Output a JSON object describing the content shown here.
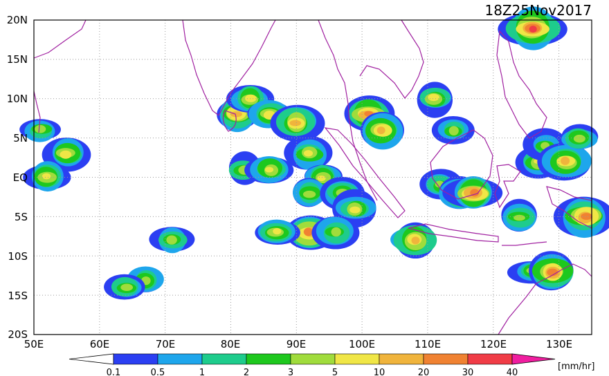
{
  "title": "18Z25Nov2017",
  "lat_labels": [
    "20N",
    "15N",
    "10N",
    "5N",
    "EQ",
    "5S",
    "10S",
    "15S",
    "20S"
  ],
  "lon_labels": [
    "50E",
    "60E",
    "70E",
    "80E",
    "90E",
    "100E",
    "110E",
    "120E",
    "130E"
  ],
  "colorbar": {
    "unit": "[mm/hr]",
    "tick_labels": [
      "0.1",
      "0.5",
      "1",
      "2",
      "3",
      "5",
      "10",
      "20",
      "30",
      "40"
    ],
    "colors": [
      "#ffffff",
      "#2b3ff2",
      "#1ea6ec",
      "#1ecc8c",
      "#1ec81e",
      "#a0dc3c",
      "#f0e646",
      "#f0b43c",
      "#f08232",
      "#f03c46",
      "#f01ea0"
    ]
  },
  "chart_data": {
    "type": "heatmap",
    "title": "18Z25Nov2017",
    "xlim": [
      50,
      135
    ],
    "ylim": [
      -20,
      20
    ],
    "unit": "[mm/hr]",
    "levels": [
      0.1,
      0.5,
      1,
      2,
      3,
      5,
      10,
      20,
      30,
      40
    ],
    "rain_areas": [
      {
        "lon": 81,
        "lat": 8,
        "level": 10
      },
      {
        "lon": 83,
        "lat": 10,
        "level": 5
      },
      {
        "lon": 86,
        "lat": 8,
        "level": 5
      },
      {
        "lon": 90,
        "lat": 7,
        "level": 10
      },
      {
        "lon": 92,
        "lat": 3,
        "level": 5
      },
      {
        "lon": 94,
        "lat": 0,
        "level": 5
      },
      {
        "lon": 92,
        "lat": -2,
        "level": 3
      },
      {
        "lon": 97,
        "lat": -2,
        "level": 3
      },
      {
        "lon": 99,
        "lat": -4,
        "level": 5
      },
      {
        "lon": 101,
        "lat": 8,
        "level": 20
      },
      {
        "lon": 103,
        "lat": 6,
        "level": 10
      },
      {
        "lon": 92,
        "lat": -7,
        "level": 20
      },
      {
        "lon": 87,
        "lat": -7,
        "level": 5
      },
      {
        "lon": 96,
        "lat": -7,
        "level": 3
      },
      {
        "lon": 112,
        "lat": -1,
        "level": 3
      },
      {
        "lon": 115,
        "lat": -2,
        "level": 10
      },
      {
        "lon": 117,
        "lat": -2,
        "level": 20
      },
      {
        "lon": 127,
        "lat": 2,
        "level": 5
      },
      {
        "lon": 128,
        "lat": 4,
        "level": 3
      },
      {
        "lon": 131,
        "lat": 2,
        "level": 10
      },
      {
        "lon": 133,
        "lat": 5,
        "level": 3
      },
      {
        "lon": 126,
        "lat": -12,
        "level": 3
      },
      {
        "lon": 129,
        "lat": -12,
        "level": 20
      },
      {
        "lon": 55,
        "lat": 3,
        "level": 5
      },
      {
        "lon": 52,
        "lat": 0,
        "level": 5
      },
      {
        "lon": 51,
        "lat": 6,
        "level": 3
      },
      {
        "lon": 67,
        "lat": -13,
        "level": 3
      },
      {
        "lon": 64,
        "lat": -14,
        "level": 3
      },
      {
        "lon": 71,
        "lat": -8,
        "level": 3
      },
      {
        "lon": 111,
        "lat": 10,
        "level": 5
      },
      {
        "lon": 114,
        "lat": 6,
        "level": 3
      },
      {
        "lon": 126,
        "lat": 19,
        "level": 30
      },
      {
        "lon": 108,
        "lat": -8,
        "level": 10
      },
      {
        "lon": 124,
        "lat": -5,
        "level": 3
      },
      {
        "lon": 134,
        "lat": -5,
        "level": 20
      },
      {
        "lon": 82,
        "lat": 1,
        "level": 3
      },
      {
        "lon": 86,
        "lat": 1,
        "level": 5
      }
    ]
  }
}
